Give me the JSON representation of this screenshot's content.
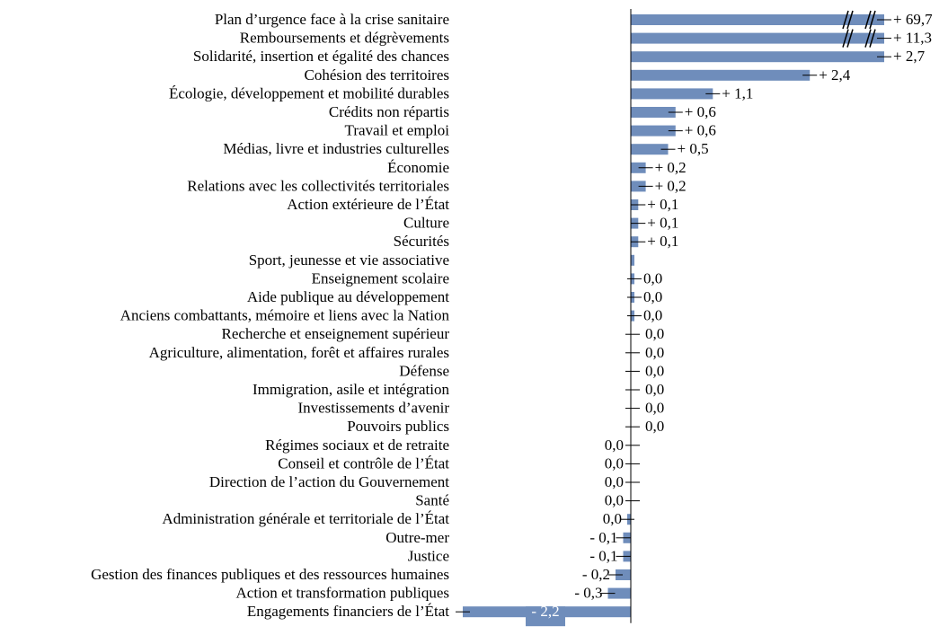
{
  "chart_data": {
    "type": "bar",
    "orientation": "horizontal",
    "title": "",
    "xlabel": "",
    "ylabel": "",
    "grid": false,
    "legend": "none",
    "bar_color": "#6f8dbb",
    "broken_axis_categories": [
      "Plan d’urgence face à la crise sanitaire",
      "Remboursements et dégrèvements"
    ],
    "categories": [
      "Plan d’urgence face à la crise sanitaire",
      "Remboursements et dégrèvements",
      "Solidarité, insertion et égalité des chances",
      "Cohésion des territoires",
      "Écologie, développement et mobilité durables",
      "Crédits non répartis",
      "Travail et emploi",
      "Médias, livre et industries culturelles",
      "Économie",
      "Relations avec les collectivités territoriales",
      "Action extérieure de l’État",
      "Culture",
      "Sécurités",
      "Sport, jeunesse et vie associative",
      "Enseignement scolaire",
      "Aide publique au développement",
      "Anciens combattants, mémoire et liens avec la Nation",
      "Recherche et enseignement supérieur",
      "Agriculture, alimentation, forêt et affaires rurales",
      "Défense",
      "Immigration, asile et intégration",
      "Investissements d’avenir",
      "Pouvoirs publics",
      "Régimes sociaux et de retraite",
      "Conseil et contrôle de l’État",
      "Direction de l’action du Gouvernement",
      "Santé",
      "Administration générale et territoriale de l’État",
      "Outre-mer",
      "Justice",
      "Gestion des finances publiques et des ressources humaines",
      "Action et transformation publiques",
      "Engagements financiers de l’État"
    ],
    "values": [
      69.7,
      11.3,
      2.7,
      2.4,
      1.1,
      0.6,
      0.6,
      0.5,
      0.2,
      0.2,
      0.1,
      0.1,
      0.1,
      0.04,
      0.03,
      0.03,
      0.01,
      0.0,
      0.0,
      0.0,
      0.0,
      0.0,
      0.0,
      0.0,
      0.0,
      0.0,
      0.0,
      -0.01,
      -0.1,
      -0.1,
      -0.2,
      -0.3,
      -2.2
    ],
    "value_labels": [
      "+ 69,7",
      "+ 11,3",
      "+ 2,7",
      "+ 2,4",
      "+ 1,1",
      "+ 0,6",
      "+ 0,6",
      "+ 0,5",
      "+ 0,2",
      "+ 0,2",
      "+ 0,1",
      "+ 0,1",
      "+ 0,1",
      "",
      "0,0",
      "0,0",
      "0,0",
      "0,0",
      "0,0",
      "0,0",
      "0,0",
      "0,0",
      "0,0",
      "0,0",
      "0,0",
      "0,0",
      "0,0",
      "0,0",
      "- 0,1",
      "- 0,1",
      "- 0,2",
      "- 0,3",
      "- 2,2"
    ]
  }
}
